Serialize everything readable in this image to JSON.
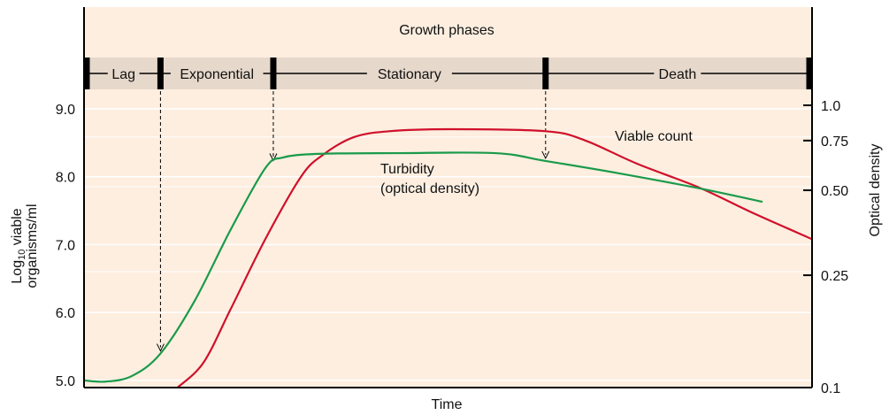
{
  "chart_data": {
    "type": "line",
    "title": "Growth phases",
    "xlabel": "Time",
    "ylabel": "Log10 viable organisms/ml",
    "ylabel_parts": {
      "prefix": "Log",
      "sub": "10",
      "suffix": " viable",
      "line2": "organisms/ml"
    },
    "y2label": "Optical density",
    "ylim": [
      4.9,
      9.0
    ],
    "y_ticks": [
      "9.0",
      "8.0",
      "7.0",
      "6.0",
      "5.0"
    ],
    "y_tick_values": [
      9,
      8,
      7,
      6,
      5
    ],
    "y2_scale": "log",
    "y2lim": [
      0.1,
      1.0
    ],
    "y2_ticks": [
      "1.0",
      "0.75",
      "0.50",
      "0.25",
      "0.1"
    ],
    "y2_tick_values": [
      1.0,
      0.75,
      0.5,
      0.25,
      0.1
    ],
    "xlim": [
      0,
      100
    ],
    "grid": true,
    "phases": [
      {
        "label": "Lag",
        "start": 0,
        "end": 10.5
      },
      {
        "label": "Exponential",
        "start": 10.5,
        "end": 26
      },
      {
        "label": "Stationary",
        "start": 26,
        "end": 63.4
      },
      {
        "label": "Death",
        "start": 63.4,
        "end": 100
      }
    ],
    "series": [
      {
        "name": "Viable count",
        "axis": "left",
        "color": "#d0102a",
        "x": [
          12.8,
          16.4,
          20.1,
          24.9,
          29.8,
          32.8,
          37.0,
          41.9,
          50.4,
          63.4,
          68.7,
          76.0,
          84.5,
          91.8,
          100
        ],
        "y": [
          4.89,
          5.26,
          6.04,
          7.08,
          8.0,
          8.32,
          8.58,
          8.67,
          8.7,
          8.67,
          8.54,
          8.19,
          7.84,
          7.47,
          7.08
        ]
      },
      {
        "name": "Turbidity (optical density)",
        "name_lines": [
          "Turbidity",
          "(optical density)"
        ],
        "axis": "right",
        "color": "#1a9a4a",
        "x": [
          0,
          3,
          6.6,
          10.5,
          15.2,
          20.1,
          24.9,
          27.3,
          32.2,
          43.2,
          56.5,
          63.4,
          73.5,
          84.5,
          93.2
        ],
        "y": [
          0.106,
          0.105,
          0.11,
          0.132,
          0.203,
          0.361,
          0.599,
          0.653,
          0.673,
          0.677,
          0.677,
          0.635,
          0.574,
          0.508,
          0.455
        ]
      }
    ],
    "arrows": [
      {
        "x": 10.5,
        "target": "turbidity"
      },
      {
        "x": 26,
        "target": "turbidity"
      },
      {
        "x": 63.4,
        "target": "turbidity"
      }
    ],
    "colors": {
      "background": "#fdeee0",
      "phase_band": "#e6d8cb"
    }
  }
}
